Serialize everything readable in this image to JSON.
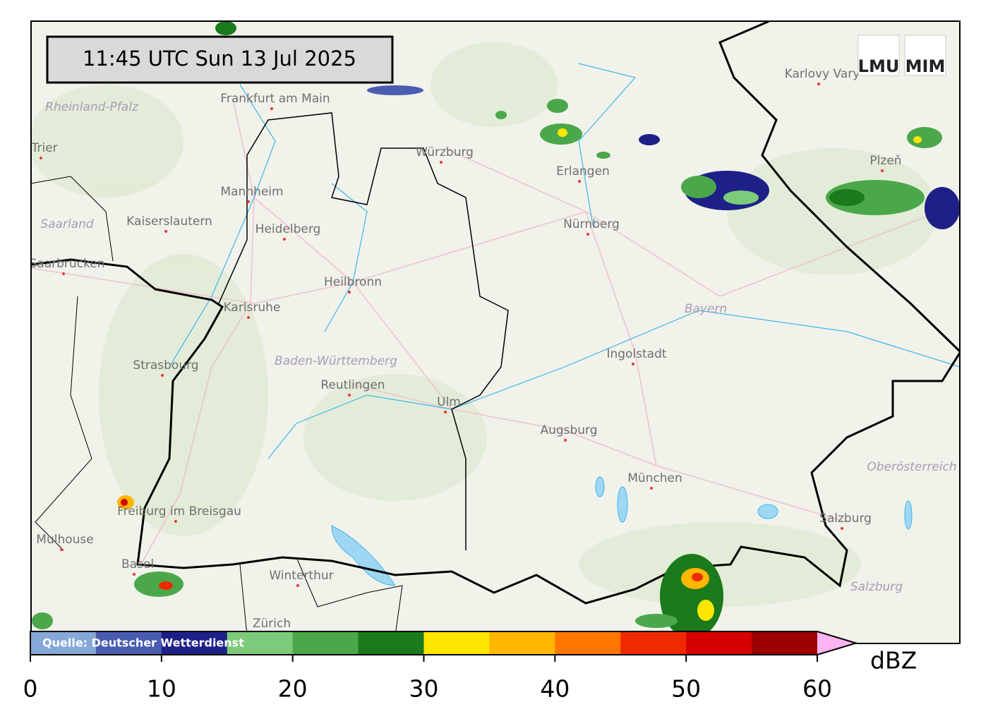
{
  "timestamp": "11:45 UTC  Sun 13 Jul 2025",
  "logos": [
    "LMU",
    "MIM"
  ],
  "cities": [
    "Frankfurt am Main",
    "Würzburg",
    "Erlangen",
    "Nürnberg",
    "Mannheim",
    "Kaiserslautern",
    "Heidelberg",
    "Saarbrücken",
    "Heilbronn",
    "Karlsruhe",
    "Strasbourg",
    "Reutlingen",
    "Ulm",
    "Ingolstadt",
    "Augsburg",
    "München",
    "Freiburg im Breisgau",
    "Mulhouse",
    "Basel",
    "Winterthur",
    "Zürich",
    "Salzburg",
    "Trier",
    "Karlovy Vary",
    "Plzeň"
  ],
  "regions": [
    "Rheinland-Pfalz",
    "Saarland",
    "Baden-Württemberg",
    "Bayern",
    "Oberösterreich",
    "Salzburg"
  ],
  "colorbar": {
    "source": "Quelle: Deutscher Wetterdienst",
    "label": "dBZ",
    "bounds": [
      0,
      5,
      10,
      15,
      20,
      25,
      30,
      35,
      40,
      45,
      50,
      55,
      60
    ],
    "colors": [
      "#86a8d8",
      "#4a5cb0",
      "#1e2088",
      "#7ccb7a",
      "#4aa84a",
      "#1b7a1b",
      "#ffe600",
      "#ffb700",
      "#ff7700",
      "#f02a00",
      "#d60000",
      "#9c0000"
    ],
    "extend_color": "#ffb4f2",
    "ticks": [
      0,
      10,
      20,
      30,
      40,
      50,
      60
    ]
  }
}
